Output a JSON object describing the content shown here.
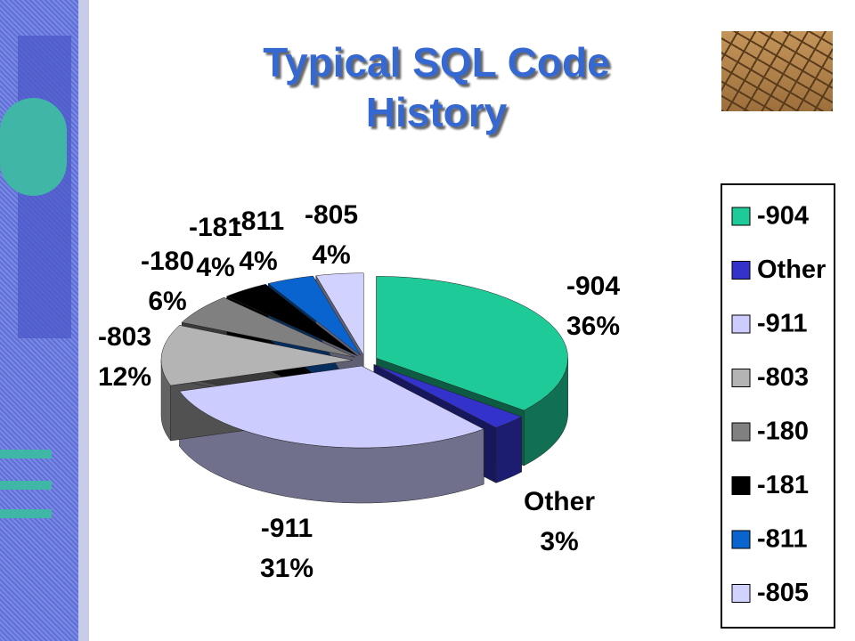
{
  "chart_data": {
    "type": "pie3d",
    "title": "Typical SQL Code History",
    "categories": [
      "-904",
      "Other",
      "-911",
      "-803",
      "-180",
      "-181",
      "-811",
      "-805"
    ],
    "values": [
      36,
      3,
      31,
      12,
      6,
      4,
      4,
      4
    ],
    "value_labels": [
      "36%",
      "3%",
      "31%",
      "12%",
      "6%",
      "4%",
      "4%",
      "4%"
    ],
    "colors": [
      "#1ecb98",
      "#3333cc",
      "#ccccff",
      "#b4b4b4",
      "#808080",
      "#000000",
      "#0a64d0",
      "#d2d2ff"
    ],
    "legend": "right"
  }
}
